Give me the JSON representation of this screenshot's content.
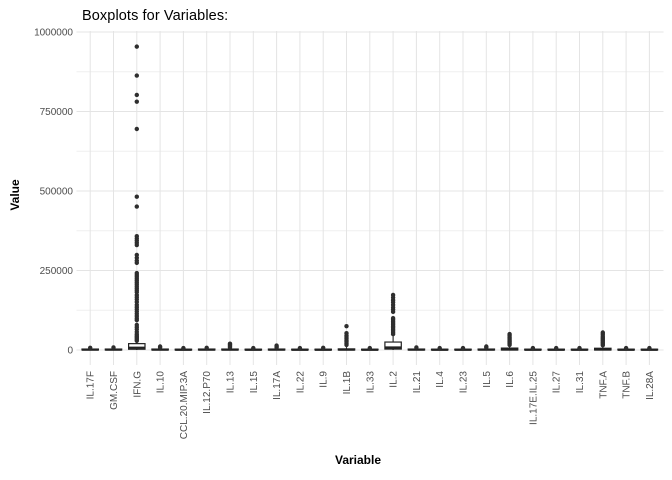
{
  "chart_data": {
    "type": "boxplot",
    "title": "Boxplots for Variables:",
    "xlabel": "Variable",
    "ylabel": "Value",
    "ylim": [
      0,
      1000000
    ],
    "yticks": [
      {
        "value": 0,
        "label": "0"
      },
      {
        "value": 250000,
        "label": "250000"
      },
      {
        "value": 500000,
        "label": "500000"
      },
      {
        "value": 750000,
        "label": "750000"
      },
      {
        "value": 1000000,
        "label": "1000000"
      }
    ],
    "yticks_minor": [
      125000,
      375000,
      625000,
      875000
    ],
    "grid": {
      "horizontal": "major+minor",
      "vertical": "major-per-category"
    },
    "legend": "none",
    "style": {
      "background": "#ffffff",
      "grid_major_color": "#e4e4e4",
      "grid_minor_color": "#efefef",
      "box_fill": "#ffffff",
      "box_stroke": "#222222",
      "dot_color": "#2e2e2e",
      "tick_text_color": "#4d4d4d",
      "title_color": "#000000"
    },
    "categories": [
      "IL.17F",
      "GM.CSF",
      "IFN.G",
      "IL.10",
      "CCL.20.MIP.3A",
      "IL.12.P70",
      "IL.13",
      "IL.15",
      "IL.17A",
      "IL.22",
      "IL.9",
      "IL.1B",
      "IL.33",
      "IL.2",
      "IL.21",
      "IL.4",
      "IL.23",
      "IL.5",
      "IL.6",
      "IL.17E.IL.25",
      "IL.27",
      "IL.31",
      "TNF.A",
      "TNF.B",
      "IL.28A"
    ],
    "boxes": [
      {
        "variable": "IL.17F",
        "q1": 0,
        "median": 1000,
        "q3": 3000,
        "whisker_low": 0,
        "whisker_high": 4500,
        "outliers": [
          7000
        ]
      },
      {
        "variable": "GM.CSF",
        "q1": 0,
        "median": 1000,
        "q3": 3000,
        "whisker_low": 0,
        "whisker_high": 5000,
        "outliers": [
          8000
        ]
      },
      {
        "variable": "IFN.G",
        "q1": 2500,
        "median": 7000,
        "q3": 20000,
        "whisker_low": 0,
        "whisker_high": 28000,
        "outliers": [
          29000,
          33000,
          37000,
          41000,
          45000,
          50000,
          57000,
          65000,
          72000,
          79000,
          94000,
          100000,
          107000,
          114000,
          121000,
          128000,
          135000,
          142000,
          151000,
          159000,
          166000,
          173000,
          182000,
          188000,
          194000,
          200000,
          206000,
          212000,
          218000,
          224000,
          230000,
          236000,
          242000,
          274000,
          281000,
          290000,
          299000,
          330000,
          337000,
          344000,
          351000,
          358000,
          451000,
          482000,
          695000,
          781000,
          802000,
          863000,
          954000
        ]
      },
      {
        "variable": "IL.10",
        "q1": 0,
        "median": 1000,
        "q3": 3000,
        "whisker_low": 0,
        "whisker_high": 5000,
        "outliers": [
          8000,
          11000
        ]
      },
      {
        "variable": "CCL.20.MIP.3A",
        "q1": 0,
        "median": 800,
        "q3": 2500,
        "whisker_low": 0,
        "whisker_high": 4000,
        "outliers": [
          6000
        ]
      },
      {
        "variable": "IL.12.P70",
        "q1": 0,
        "median": 1000,
        "q3": 3000,
        "whisker_low": 0,
        "whisker_high": 4500,
        "outliers": [
          7000
        ]
      },
      {
        "variable": "IL.13",
        "q1": 0,
        "median": 1000,
        "q3": 3000,
        "whisker_low": 0,
        "whisker_high": 5000,
        "outliers": [
          8000,
          11000,
          14000,
          17000,
          20000
        ]
      },
      {
        "variable": "IL.15",
        "q1": 0,
        "median": 800,
        "q3": 2500,
        "whisker_low": 0,
        "whisker_high": 4000,
        "outliers": [
          6000
        ]
      },
      {
        "variable": "IL.17A",
        "q1": 0,
        "median": 1000,
        "q3": 3000,
        "whisker_low": 0,
        "whisker_high": 5000,
        "outliers": [
          8000,
          11000,
          14000
        ]
      },
      {
        "variable": "IL.22",
        "q1": 0,
        "median": 800,
        "q3": 2500,
        "whisker_low": 0,
        "whisker_high": 4000,
        "outliers": [
          6000
        ]
      },
      {
        "variable": "IL.9",
        "q1": 0,
        "median": 800,
        "q3": 2500,
        "whisker_low": 0,
        "whisker_high": 4000,
        "outliers": [
          7000
        ]
      },
      {
        "variable": "IL.1B",
        "q1": 0,
        "median": 1000,
        "q3": 3500,
        "whisker_low": 0,
        "whisker_high": 9000,
        "outliers": [
          16000,
          21000,
          26000,
          31000,
          36000,
          41000,
          46000,
          53000,
          75000
        ]
      },
      {
        "variable": "IL.33",
        "q1": 0,
        "median": 800,
        "q3": 2500,
        "whisker_low": 0,
        "whisker_high": 4000,
        "outliers": [
          6000
        ]
      },
      {
        "variable": "IL.2",
        "q1": 3000,
        "median": 8000,
        "q3": 25000,
        "whisker_low": 0,
        "whisker_high": 45000,
        "outliers": [
          50000,
          55000,
          60000,
          65000,
          70000,
          75000,
          80000,
          85000,
          90000,
          95000,
          100000,
          120000,
          127000,
          134000,
          142000,
          150000,
          157000,
          165000,
          173000
        ]
      },
      {
        "variable": "IL.21",
        "q1": 0,
        "median": 1000,
        "q3": 3000,
        "whisker_low": 0,
        "whisker_high": 5000,
        "outliers": [
          8000
        ]
      },
      {
        "variable": "IL.4",
        "q1": 0,
        "median": 800,
        "q3": 2500,
        "whisker_low": 0,
        "whisker_high": 4000,
        "outliers": [
          6000
        ]
      },
      {
        "variable": "IL.23",
        "q1": 0,
        "median": 800,
        "q3": 2500,
        "whisker_low": 0,
        "whisker_high": 4000,
        "outliers": [
          6000
        ]
      },
      {
        "variable": "IL.5",
        "q1": 0,
        "median": 1000,
        "q3": 3000,
        "whisker_low": 0,
        "whisker_high": 5000,
        "outliers": [
          8000,
          11000
        ]
      },
      {
        "variable": "IL.6",
        "q1": 0,
        "median": 1500,
        "q3": 6000,
        "whisker_low": 0,
        "whisker_high": 12000,
        "outliers": [
          16000,
          20000,
          24000,
          28000,
          32000,
          36000,
          40000,
          45000,
          50000
        ]
      },
      {
        "variable": "IL.17E.IL.25",
        "q1": 0,
        "median": 800,
        "q3": 2500,
        "whisker_low": 0,
        "whisker_high": 4000,
        "outliers": [
          6000
        ]
      },
      {
        "variable": "IL.27",
        "q1": 0,
        "median": 800,
        "q3": 2500,
        "whisker_low": 0,
        "whisker_high": 4000,
        "outliers": [
          6000
        ]
      },
      {
        "variable": "IL.31",
        "q1": 0,
        "median": 800,
        "q3": 2500,
        "whisker_low": 0,
        "whisker_high": 4000,
        "outliers": [
          6000
        ]
      },
      {
        "variable": "TNF.A",
        "q1": 0,
        "median": 1500,
        "q3": 5500,
        "whisker_low": 0,
        "whisker_high": 11000,
        "outliers": [
          15000,
          19000,
          23000,
          27000,
          31000,
          35000,
          39000,
          44000,
          50000,
          55000
        ]
      },
      {
        "variable": "TNF.B",
        "q1": 0,
        "median": 800,
        "q3": 2500,
        "whisker_low": 0,
        "whisker_high": 4000,
        "outliers": [
          6000
        ]
      },
      {
        "variable": "IL.28A",
        "q1": 0,
        "median": 800,
        "q3": 2500,
        "whisker_low": 0,
        "whisker_high": 4000,
        "outliers": [
          6000
        ]
      }
    ]
  }
}
